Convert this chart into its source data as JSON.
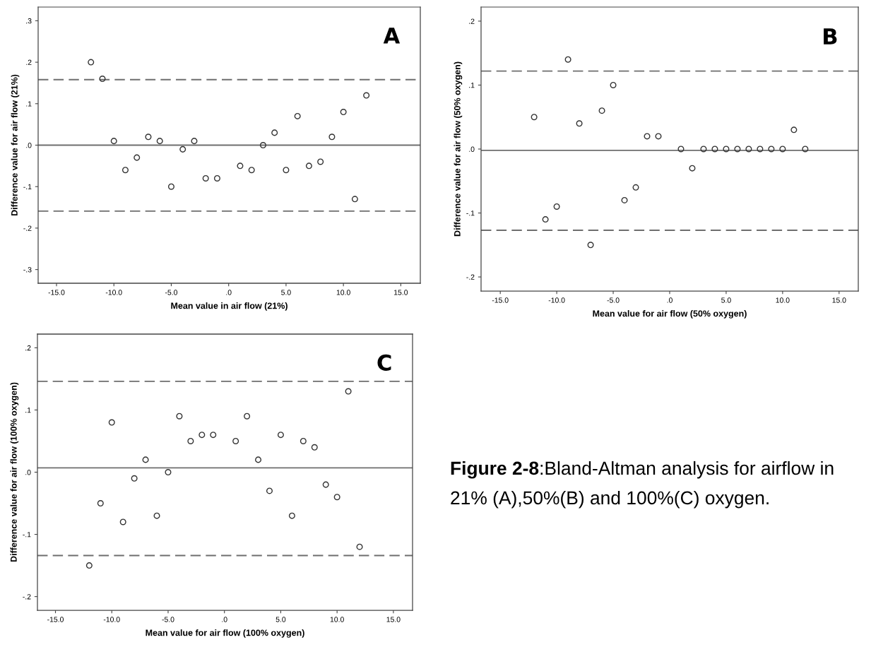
{
  "chart_data": [
    {
      "type": "scatter",
      "xlabel": "Mean value in air flow (21%)",
      "ylabel": "Difference value for air flow (21%)",
      "annotations": [
        "A"
      ],
      "marker": "circle",
      "color": "#333333",
      "grid": false,
      "x": [
        -12,
        -11,
        -10,
        -9,
        -8,
        -7,
        -6,
        -5,
        -4,
        -3,
        -2,
        -1,
        1,
        2,
        3,
        4,
        5,
        6,
        7,
        8,
        9,
        10,
        11,
        12
      ],
      "values": [
        0.2,
        0.16,
        0.01,
        -0.06,
        -0.03,
        0.02,
        0.01,
        -0.1,
        -0.01,
        0.01,
        -0.08,
        -0.08,
        -0.05,
        -0.06,
        0.0,
        0.03,
        -0.06,
        0.07,
        -0.05,
        -0.04,
        0.02,
        0.08,
        -0.13,
        0.12
      ],
      "xlim": [
        -16.6,
        16.7
      ],
      "ylim": [
        -0.333,
        0.333
      ],
      "xticks": [
        {
          "value": -15,
          "label": "-15.0"
        },
        {
          "value": -10,
          "label": "-10.0"
        },
        {
          "value": -5,
          "label": "-5.0"
        },
        {
          "value": 0,
          "label": ".0"
        },
        {
          "value": 5,
          "label": "5.0"
        },
        {
          "value": 10,
          "label": "10.0"
        },
        {
          "value": 15,
          "label": "15.0"
        }
      ],
      "yticks": [
        {
          "value": -0.3,
          "label": "-.3"
        },
        {
          "value": -0.2,
          "label": "-.2"
        },
        {
          "value": -0.1,
          "label": "-.1"
        },
        {
          "value": 0,
          "label": ".0"
        },
        {
          "value": 0.1,
          "label": ".1"
        },
        {
          "value": 0.2,
          "label": ".2"
        },
        {
          "value": 0.3,
          "label": ".3"
        }
      ],
      "ref_lines": [
        {
          "axis": "y",
          "value": 0.158,
          "color": "#6e6e6e",
          "line_style": "dashed"
        },
        {
          "axis": "y",
          "value": 0.0,
          "color": "#6e6e6e",
          "line_style": "solid"
        },
        {
          "axis": "y",
          "value": -0.159,
          "color": "#6e6e6e",
          "line_style": "dashed"
        }
      ]
    },
    {
      "type": "scatter",
      "xlabel": "Mean value for air flow (50% oxygen)",
      "ylabel": "Difference value for air flow (50% oxygen)",
      "annotations": [
        "B"
      ],
      "marker": "circle",
      "color": "#333333",
      "grid": false,
      "x": [
        -12,
        -11,
        -10,
        -9,
        -8,
        -7,
        -6,
        -5,
        -4,
        -3,
        -2,
        -1,
        1,
        2,
        3,
        4,
        5,
        6,
        7,
        8,
        9,
        10,
        11,
        12
      ],
      "values": [
        0.05,
        -0.11,
        -0.09,
        0.14,
        0.04,
        -0.15,
        0.06,
        0.1,
        -0.08,
        -0.06,
        0.02,
        0.02,
        0.0,
        -0.03,
        0.0,
        0.0,
        0.0,
        0.0,
        0.0,
        0.0,
        0.0,
        0.0,
        0.03,
        0.0
      ],
      "xlim": [
        -16.7,
        16.7
      ],
      "ylim": [
        -0.222,
        0.222
      ],
      "xticks": [
        {
          "value": -15,
          "label": "-15.0"
        },
        {
          "value": -10,
          "label": "-10.0"
        },
        {
          "value": -5,
          "label": "-5.0"
        },
        {
          "value": 0,
          "label": ".0"
        },
        {
          "value": 5,
          "label": "5.0"
        },
        {
          "value": 10,
          "label": "10.0"
        },
        {
          "value": 15,
          "label": "15.0"
        }
      ],
      "yticks": [
        {
          "value": -0.2,
          "label": "-.2"
        },
        {
          "value": -0.1,
          "label": "-.1"
        },
        {
          "value": 0,
          "label": ".0"
        },
        {
          "value": 0.1,
          "label": ".1"
        },
        {
          "value": 0.2,
          "label": ".2"
        }
      ],
      "ref_lines": [
        {
          "axis": "y",
          "value": 0.122,
          "color": "#6e6e6e",
          "line_style": "dashed"
        },
        {
          "axis": "y",
          "value": -0.002,
          "color": "#6e6e6e",
          "line_style": "solid"
        },
        {
          "axis": "y",
          "value": -0.127,
          "color": "#6e6e6e",
          "line_style": "dashed"
        }
      ]
    },
    {
      "type": "scatter",
      "xlabel": "Mean value for air flow (100% oxygen)",
      "ylabel": "Difference value for air flow (100% oxygen)",
      "annotations": [
        "C"
      ],
      "marker": "circle",
      "color": "#333333",
      "grid": false,
      "x": [
        -12,
        -11,
        -10,
        -9,
        -8,
        -7,
        -6,
        -5,
        -4,
        -3,
        -2,
        -1,
        1,
        2,
        3,
        4,
        5,
        6,
        7,
        8,
        9,
        10,
        11,
        12
      ],
      "values": [
        -0.15,
        -0.05,
        0.08,
        -0.08,
        -0.01,
        0.02,
        -0.07,
        0.0,
        0.09,
        0.05,
        0.06,
        0.06,
        0.05,
        0.09,
        0.02,
        -0.03,
        0.06,
        -0.07,
        0.05,
        0.04,
        -0.02,
        -0.04,
        0.13,
        -0.12
      ],
      "xlim": [
        -16.6,
        16.7
      ],
      "ylim": [
        -0.222,
        0.222
      ],
      "xticks": [
        {
          "value": -15,
          "label": "-15.0"
        },
        {
          "value": -10,
          "label": "-10.0"
        },
        {
          "value": -5,
          "label": "-5.0"
        },
        {
          "value": 0,
          "label": ".0"
        },
        {
          "value": 5,
          "label": "5.0"
        },
        {
          "value": 10,
          "label": "10.0"
        },
        {
          "value": 15,
          "label": "15.0"
        }
      ],
      "yticks": [
        {
          "value": -0.2,
          "label": "-.2"
        },
        {
          "value": -0.1,
          "label": "-.1"
        },
        {
          "value": 0,
          "label": ".0"
        },
        {
          "value": 0.1,
          "label": ".1"
        },
        {
          "value": 0.2,
          "label": ".2"
        }
      ],
      "ref_lines": [
        {
          "axis": "y",
          "value": 0.146,
          "color": "#6e6e6e",
          "line_style": "dashed"
        },
        {
          "axis": "y",
          "value": 0.007,
          "color": "#6e6e6e",
          "line_style": "solid"
        },
        {
          "axis": "y",
          "value": -0.134,
          "color": "#6e6e6e",
          "line_style": "dashed"
        }
      ]
    },
    {
      "type": "other",
      "title": "Figure 2-8",
      "annotations": [
        ":Bland-Altman analysis for airflow in 21% (A),50%(B) and 100%(C) oxygen."
      ]
    }
  ]
}
